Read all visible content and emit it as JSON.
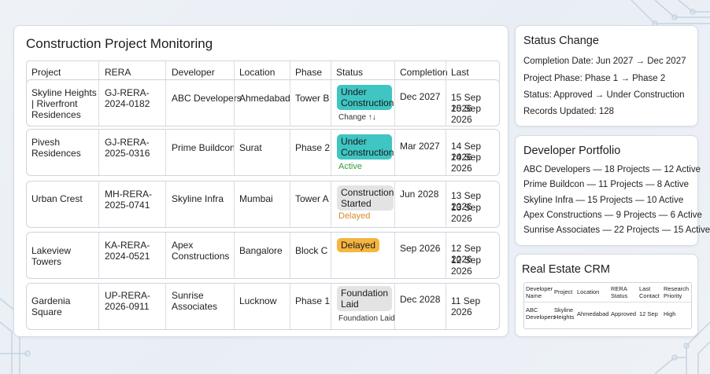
{
  "main": {
    "title": "Construction Project Monitoring",
    "headers": [
      "Project",
      "RERA",
      "Developer",
      "Location",
      "Phase",
      "Status",
      "Completion",
      "Last Update"
    ],
    "rows": [
      {
        "project": "Skyline Heights | Riverfront Residences",
        "rera": "GJ-RERA-2024-0182",
        "developer": "ABC Developers",
        "location": "Ahmedabad",
        "phase": "Tower B",
        "status": "Under Construction",
        "status_color": "#3fc5c2",
        "status_sub": "Change ↑↓",
        "status_sub_color": "#333333",
        "completion": "Dec 2027",
        "last_update_1": "15 Sep 2026",
        "last_update_2": "15 Sep 2026"
      },
      {
        "project": "Pivesh Residences",
        "rera": "GJ-RERA-2025-0316",
        "developer": "Prime Buildcon",
        "location": "Surat",
        "phase": "Phase 2",
        "status": "Under Construction",
        "status_color": "#3fc5c2",
        "status_sub": "Active",
        "status_sub_color": "#3a9a3a",
        "completion": "Mar 2027",
        "last_update_1": "14 Sep 2026",
        "last_update_2": "14 Sep 2026"
      },
      {
        "project": "Urban Crest",
        "rera": "MH-RERA-2025-0741",
        "developer": "Skyline Infra",
        "location": "Mumbai",
        "phase": "Tower A",
        "status": "Construction Started",
        "status_color": "#e3e3e3",
        "status_sub": "Delayed",
        "status_sub_color": "#d98a2b",
        "completion": "Jun 2028",
        "last_update_1": "13 Sep 2026",
        "last_update_2": "13 Sep 2026"
      },
      {
        "project": "Lakeview Towers",
        "rera": "KA-RERA-2024-0521",
        "developer": "Apex Constructions",
        "location": "Bangalore",
        "phase": "Block C",
        "status": "Delayed",
        "status_color": "#f5b53f",
        "status_sub": "",
        "status_sub_color": "#333333",
        "completion": "Sep 2026",
        "last_update_1": "12 Sep 2026",
        "last_update_2": "12 Sep 2026"
      },
      {
        "project": "Gardenia Square",
        "rera": "UP-RERA-2026-0911",
        "developer": "Sunrise Associates",
        "location": "Lucknow",
        "phase": "Phase 1",
        "status": "Foundation Laid",
        "status_color": "#e3e3e3",
        "status_sub": "Foundation Laid",
        "status_sub_color": "#333333",
        "completion": "Dec 2028",
        "last_update_1": "11 Sep 2026",
        "last_update_2": ""
      }
    ]
  },
  "status_change": {
    "title": "Status Change",
    "lines": [
      "Completion Date: Jun 2027 → Dec 2027",
      "Project Phase: Phase 1 → Phase 2",
      "Status: Approved → Under Construction",
      "Records Updated: 128"
    ]
  },
  "developer_portfolio": {
    "title": "Developer Portfolio",
    "lines": [
      "ABC Developers — 18 Projects — 12 Active",
      "Prime Buildcon — 11 Projects — 8 Active",
      "Skyline Infra — 15 Projects — 10 Active",
      "Apex Constructions — 9 Projects — 6 Active",
      "Sunrise Associates — 22 Projects — 15 Active"
    ]
  },
  "crm": {
    "title": "Real Estate CRM",
    "headers": [
      "Developer Name",
      "Project",
      "Location",
      "RERA Status",
      "Last Contact",
      "Research Priority"
    ],
    "row": [
      "ABC Developers",
      "Skyline Heights",
      "Ahmedabad",
      "Approved",
      "12 Sep",
      "High"
    ]
  }
}
